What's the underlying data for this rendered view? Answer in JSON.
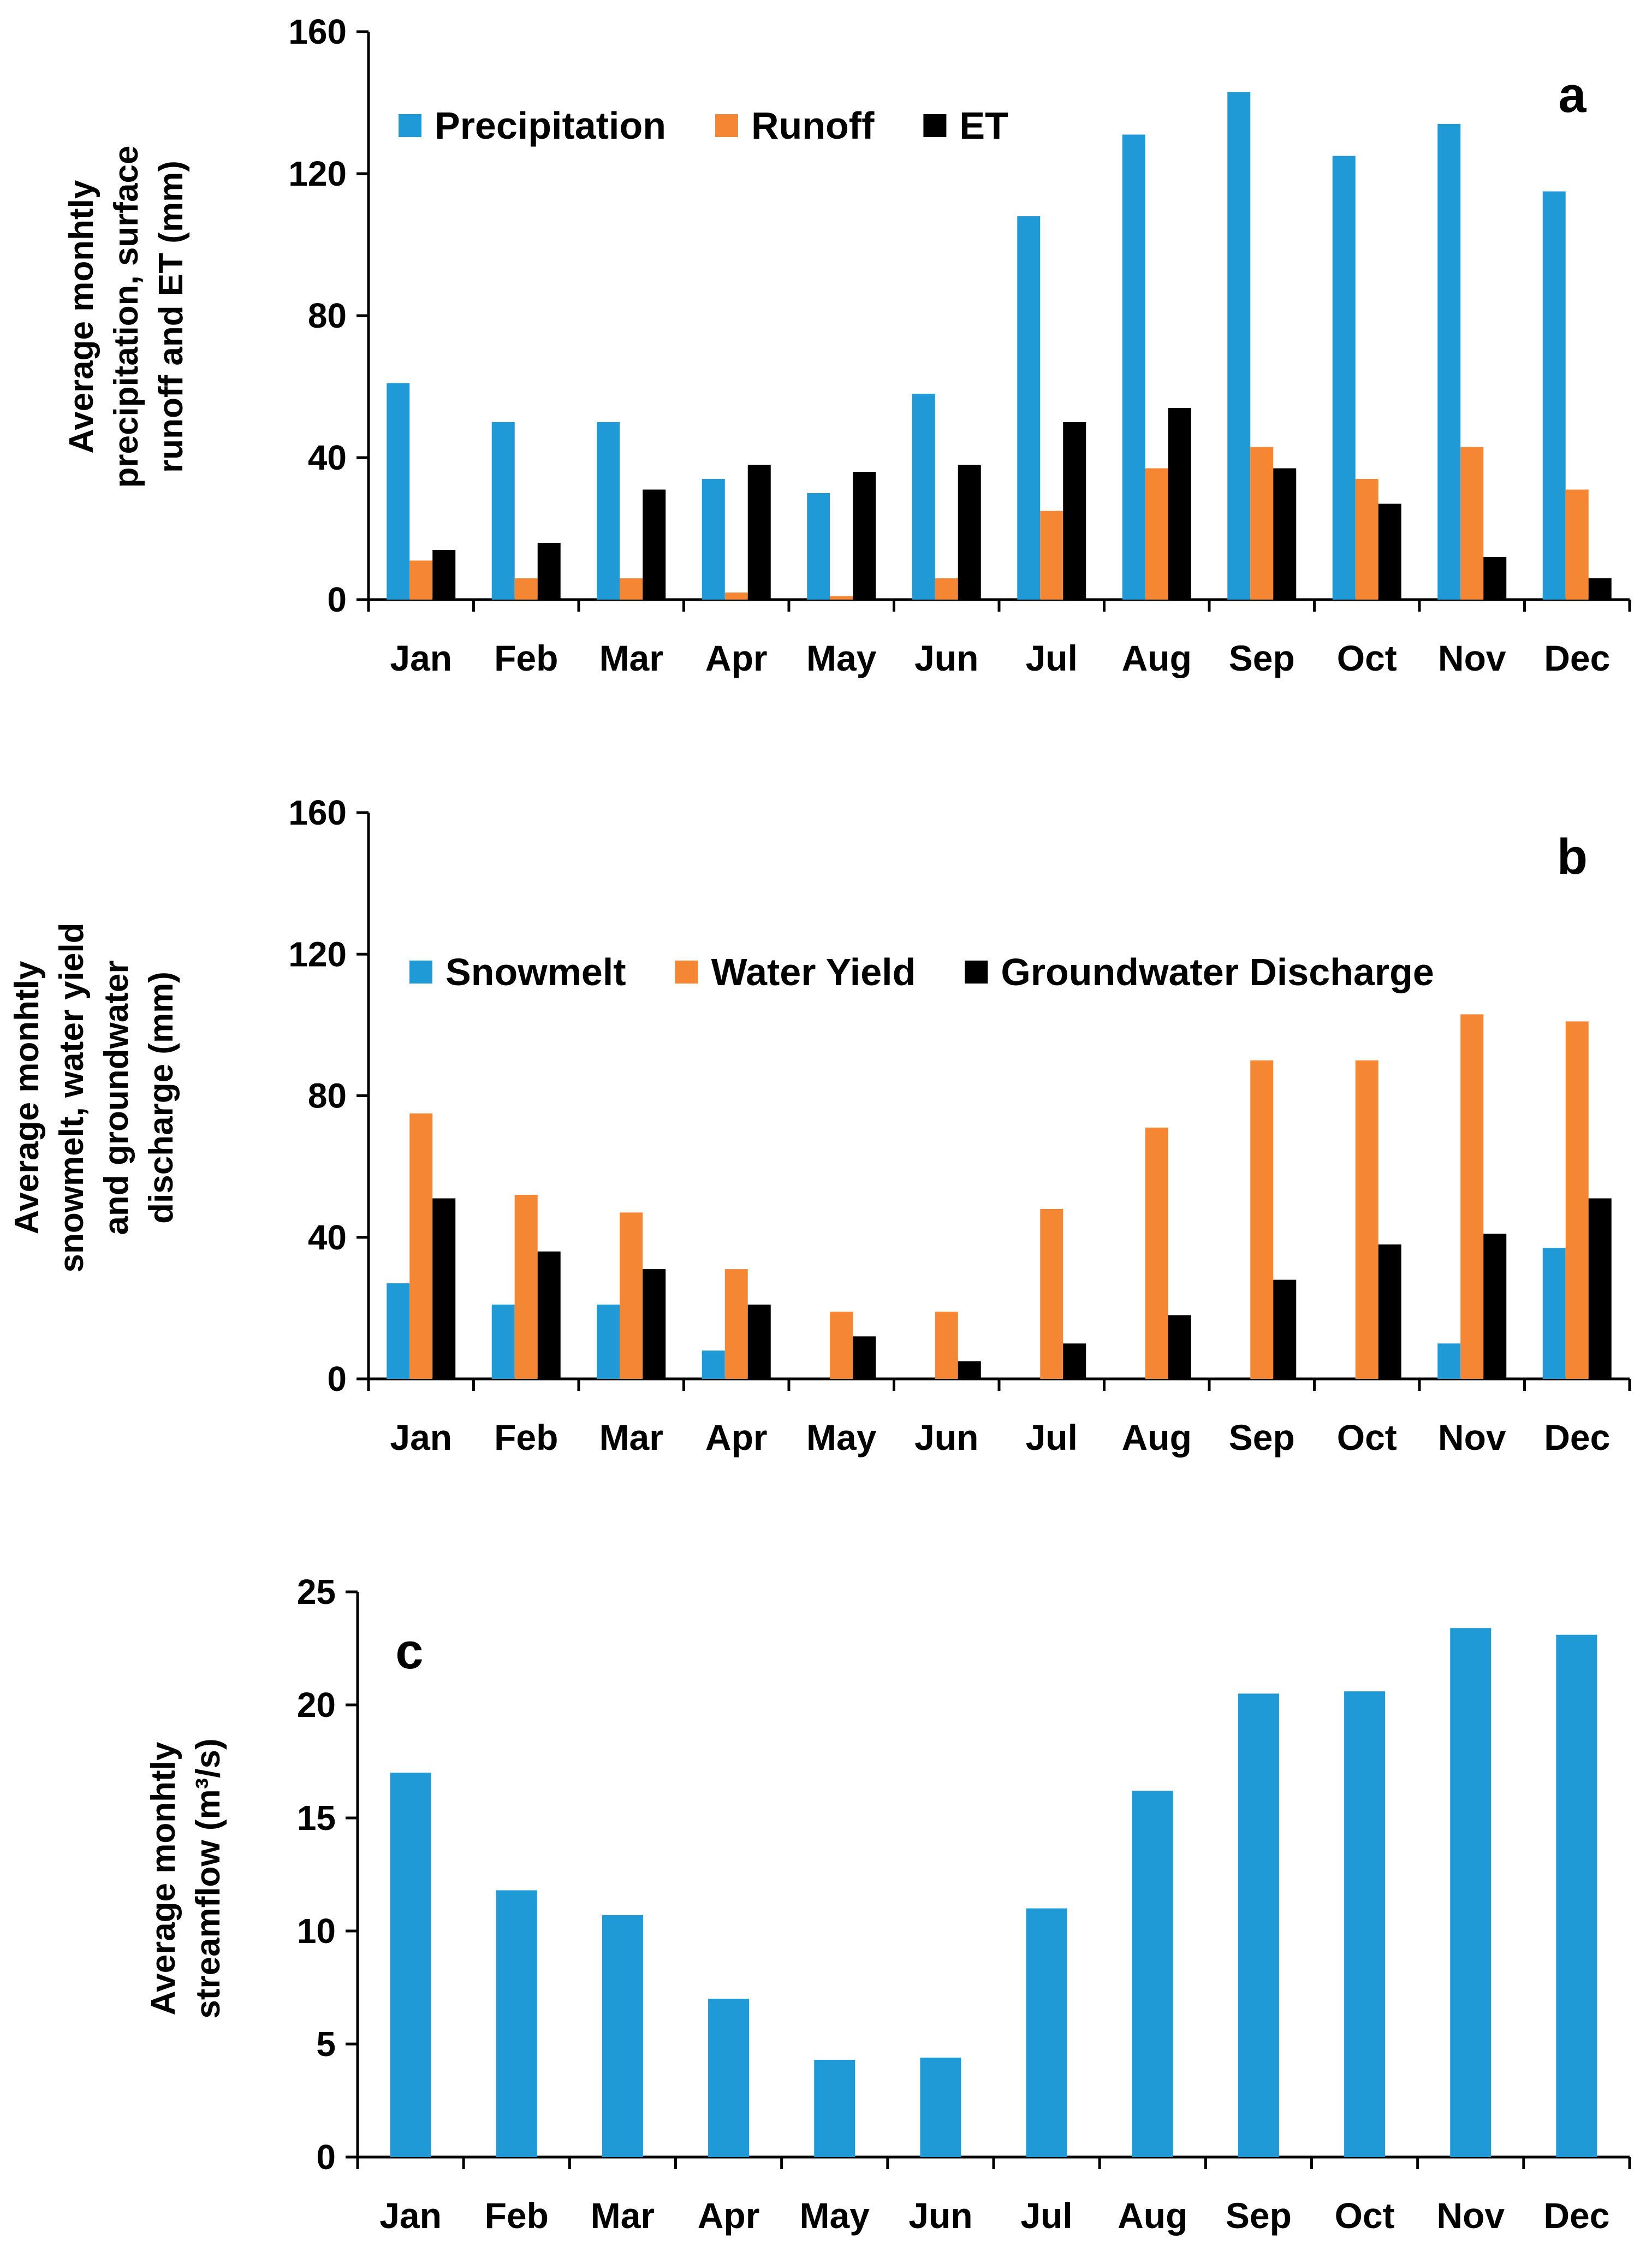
{
  "chart_data": [
    {
      "type": "bar",
      "panel_label": "a",
      "categories": [
        "Jan",
        "Feb",
        "Mar",
        "Apr",
        "May",
        "Jun",
        "Jul",
        "Aug",
        "Sep",
        "Oct",
        "Nov",
        "Dec"
      ],
      "series": [
        {
          "name": "Precipitation",
          "color": "#1f9ad6",
          "values": [
            61,
            50,
            50,
            34,
            30,
            58,
            108,
            131,
            143,
            125,
            134,
            115
          ]
        },
        {
          "name": "Runoff",
          "color": "#f58634",
          "values": [
            11,
            6,
            6,
            2,
            1,
            6,
            25,
            37,
            43,
            34,
            43,
            31
          ]
        },
        {
          "name": "ET",
          "color": "#000000",
          "values": [
            14,
            16,
            31,
            38,
            36,
            38,
            50,
            54,
            37,
            27,
            12,
            6
          ]
        }
      ],
      "ylabel_lines": [
        "Average monhtly",
        "precipitation, surface",
        "runoff and ET (mm)"
      ],
      "ylim": [
        0,
        160
      ],
      "yticks": [
        "0",
        "40",
        "80",
        "120",
        "160"
      ],
      "legend_position": "top"
    },
    {
      "type": "bar",
      "panel_label": "b",
      "categories": [
        "Jan",
        "Feb",
        "Mar",
        "Apr",
        "May",
        "Jun",
        "Jul",
        "Aug",
        "Sep",
        "Oct",
        "Nov",
        "Dec"
      ],
      "series": [
        {
          "name": "Snowmelt",
          "color": "#1f9ad6",
          "values": [
            27,
            21,
            21,
            8,
            0,
            0,
            0,
            0,
            0,
            0,
            10,
            37
          ]
        },
        {
          "name": "Water Yield",
          "color": "#f58634",
          "values": [
            75,
            52,
            47,
            31,
            19,
            19,
            48,
            71,
            90,
            90,
            103,
            101
          ]
        },
        {
          "name": "Groundwater Discharge",
          "color": "#000000",
          "values": [
            51,
            36,
            31,
            21,
            12,
            5,
            10,
            18,
            28,
            38,
            41,
            51
          ]
        }
      ],
      "ylabel_lines": [
        "Average monhtly",
        "snowmelt, water yield",
        "and groundwater",
        "discharge (mm)"
      ],
      "ylim": [
        0,
        160
      ],
      "yticks": [
        "0",
        "40",
        "80",
        "120",
        "160"
      ],
      "legend_position": "top"
    },
    {
      "type": "bar",
      "panel_label": "c",
      "categories": [
        "Jan",
        "Feb",
        "Mar",
        "Apr",
        "May",
        "Jun",
        "Jul",
        "Aug",
        "Sep",
        "Oct",
        "Nov",
        "Dec"
      ],
      "series": [
        {
          "name": "Streamflow",
          "color": "#1f9ad6",
          "values": [
            17.0,
            11.8,
            10.7,
            7.0,
            4.3,
            4.4,
            11.0,
            16.2,
            20.5,
            20.6,
            23.4,
            23.1
          ]
        }
      ],
      "ylabel_lines": [
        "Average monhtly",
        "streamflow (m³/s)"
      ],
      "ylim": [
        0,
        25
      ],
      "yticks": [
        "0",
        "5",
        "10",
        "15",
        "20",
        "25"
      ],
      "legend_position": "none"
    }
  ]
}
